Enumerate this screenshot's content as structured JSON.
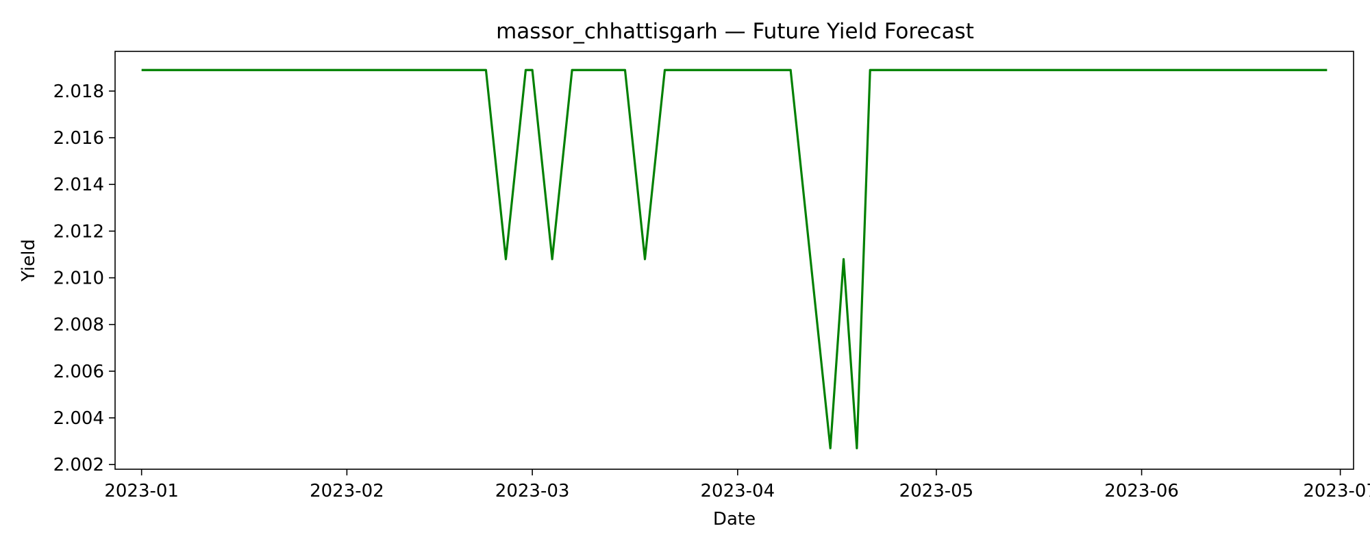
{
  "chart_data": {
    "type": "line",
    "title": "massor_chhattisgarh — Future Yield Forecast",
    "xlabel": "Date",
    "ylabel": "Yield",
    "x_ticks": [
      "2023-01",
      "2023-02",
      "2023-03",
      "2023-04",
      "2023-05",
      "2023-06",
      "2023-07"
    ],
    "x_tick_dates": [
      "2023-01-01",
      "2023-02-01",
      "2023-03-01",
      "2023-04-01",
      "2023-05-01",
      "2023-06-01",
      "2023-07-01"
    ],
    "y_ticks": [
      "2.002",
      "2.004",
      "2.006",
      "2.008",
      "2.010",
      "2.012",
      "2.014",
      "2.016",
      "2.018"
    ],
    "xlim": [
      "2022-12-28",
      "2023-07-03"
    ],
    "ylim": [
      2.0018,
      2.0197
    ],
    "grid": false,
    "line_color": "#008000",
    "series": [
      {
        "x": [
          "2023-01-01",
          "2023-02-22",
          "2023-02-25",
          "2023-02-28",
          "2023-03-01",
          "2023-03-04",
          "2023-03-07",
          "2023-03-15",
          "2023-03-18",
          "2023-03-21",
          "2023-04-09",
          "2023-04-15",
          "2023-04-17",
          "2023-04-19",
          "2023-04-21",
          "2023-06-29"
        ],
        "y": [
          2.0189,
          2.0189,
          2.0108,
          2.0189,
          2.0189,
          2.0108,
          2.0189,
          2.0189,
          2.0108,
          2.0189,
          2.0189,
          2.0027,
          2.0108,
          2.0027,
          2.0189,
          2.0189
        ]
      }
    ]
  }
}
